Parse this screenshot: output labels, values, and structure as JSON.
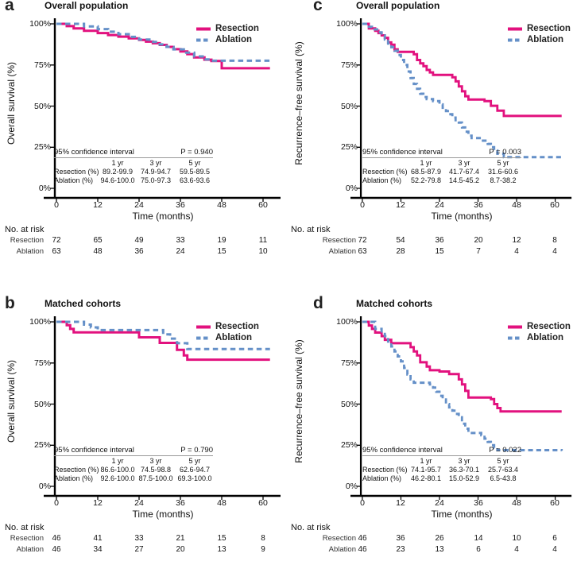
{
  "figure": {
    "colors": {
      "resection": "#E2117E",
      "ablation": "#6590C8",
      "axis": "#000000"
    }
  },
  "chart_data": [
    {
      "id": "a",
      "type": "line",
      "letter": "a",
      "title": "Overall population",
      "ylabel": "Overall survival (%)",
      "xlabel": "Time (months)",
      "xlim": [
        0,
        62
      ],
      "ylim": [
        0,
        100
      ],
      "x_ticks": [
        "0",
        "12",
        "24",
        "36",
        "48",
        "60"
      ],
      "y_ticks": [
        "100%",
        "75%",
        "50%",
        "25%",
        "0%"
      ],
      "ci_table": {
        "heading": "95% confidence interval",
        "p_value": "P = 0.940",
        "col_headers": [
          "1 yr",
          "3 yr",
          "5 yr"
        ],
        "rows": [
          {
            "label": "Resection (%)",
            "values": [
              "89.2-99.9",
              "74.9-94.7",
              "59.5-89.5"
            ]
          },
          {
            "label": "Ablation (%)",
            "values": [
              "94.6-100.0",
              "75.0-97.3",
              "63.6-93.6"
            ]
          }
        ]
      },
      "at_risk": {
        "heading": "No. at risk",
        "rows": [
          {
            "label": "Resection",
            "values": [
              "72",
              "65",
              "49",
              "33",
              "19",
              "11"
            ]
          },
          {
            "label": "Ablation",
            "values": [
              "63",
              "48",
              "36",
              "24",
              "15",
              "10"
            ]
          }
        ]
      },
      "series": [
        {
          "name": "Resection",
          "style": "solid",
          "points": [
            [
              0,
              100
            ],
            [
              3,
              98.6
            ],
            [
              5,
              97.2
            ],
            [
              8,
              95.8
            ],
            [
              12,
              94.4
            ],
            [
              15,
              93.2
            ],
            [
              18,
              92.2
            ],
            [
              21,
              91.2
            ],
            [
              24,
              90.2
            ],
            [
              26,
              89.2
            ],
            [
              28,
              88.2
            ],
            [
              30,
              87.2
            ],
            [
              32,
              86
            ],
            [
              34,
              84.6
            ],
            [
              36,
              83.2
            ],
            [
              38,
              81.6
            ],
            [
              40,
              79.6
            ],
            [
              43,
              78.2
            ],
            [
              45,
              77.4
            ],
            [
              48,
              73
            ],
            [
              62,
              73
            ]
          ]
        },
        {
          "name": "Ablation",
          "style": "dashed",
          "points": [
            [
              0,
              100
            ],
            [
              8,
              98.4
            ],
            [
              12,
              96.8
            ],
            [
              15,
              95.2
            ],
            [
              18,
              93.7
            ],
            [
              21,
              92.1
            ],
            [
              24,
              90.5
            ],
            [
              27,
              89
            ],
            [
              30,
              87.5
            ],
            [
              32,
              86
            ],
            [
              34,
              84.5
            ],
            [
              37,
              82.5
            ],
            [
              40,
              80.2
            ],
            [
              43,
              78.4
            ],
            [
              45,
              77.6
            ],
            [
              62,
              77.6
            ]
          ]
        }
      ]
    },
    {
      "id": "b",
      "type": "line",
      "letter": "b",
      "title": "Matched cohorts",
      "ylabel": "Overall survival (%)",
      "xlabel": "Time (months)",
      "xlim": [
        0,
        62
      ],
      "ylim": [
        0,
        100
      ],
      "x_ticks": [
        "0",
        "12",
        "24",
        "36",
        "48",
        "60"
      ],
      "y_ticks": [
        "100%",
        "75%",
        "50%",
        "25%",
        "0%"
      ],
      "ci_table": {
        "heading": "95% confidence interval",
        "p_value": "P = 0.790",
        "col_headers": [
          "1 yr",
          "3 yr",
          "5 yr"
        ],
        "rows": [
          {
            "label": "Resection (%)",
            "values": [
              "86.6-100.0",
              "74.5-98.8",
              "62.6-94.7"
            ]
          },
          {
            "label": "Ablation (%)",
            "values": [
              "92.6-100.0",
              "87.5-100.0",
              "69.3-100.0"
            ]
          }
        ]
      },
      "at_risk": {
        "heading": "No. at risk",
        "rows": [
          {
            "label": "Resection",
            "values": [
              "46",
              "41",
              "33",
              "21",
              "15",
              "8"
            ]
          },
          {
            "label": "Ablation",
            "values": [
              "46",
              "34",
              "27",
              "20",
              "13",
              "9"
            ]
          }
        ]
      },
      "series": [
        {
          "name": "Resection",
          "style": "solid",
          "points": [
            [
              0,
              100
            ],
            [
              3,
              97.9
            ],
            [
              4,
              95.7
            ],
            [
              5,
              93.6
            ],
            [
              24,
              90.6
            ],
            [
              30,
              87.2
            ],
            [
              35,
              83
            ],
            [
              37,
              79.6
            ],
            [
              38,
              77
            ],
            [
              62,
              77
            ]
          ]
        },
        {
          "name": "Ablation",
          "style": "dashed",
          "points": [
            [
              0,
              100
            ],
            [
              8,
              98.3
            ],
            [
              10,
              96.6
            ],
            [
              12,
              95
            ],
            [
              31,
              92.4
            ],
            [
              33,
              89.8
            ],
            [
              35,
              87
            ],
            [
              38,
              83.5
            ],
            [
              62,
              83.5
            ]
          ]
        }
      ]
    },
    {
      "id": "c",
      "type": "line",
      "letter": "c",
      "title": "Overall population",
      "ylabel": "Recurrence–free survival (%)",
      "xlabel": "Time (months)",
      "xlim": [
        0,
        62
      ],
      "ylim": [
        0,
        100
      ],
      "x_ticks": [
        "0",
        "12",
        "24",
        "36",
        "48",
        "60"
      ],
      "y_ticks": [
        "100%",
        "75%",
        "50%",
        "25%",
        "0%"
      ],
      "ci_table": {
        "heading": "95% confidence interval",
        "p_value": "P = 0.003",
        "col_headers": [
          "1 yr",
          "3 yr",
          "5 yr"
        ],
        "rows": [
          {
            "label": "Resection (%)",
            "values": [
              "68.5-87.9",
              "41.7-67.4",
              "31.6-60.6"
            ]
          },
          {
            "label": "Ablation (%)",
            "values": [
              "52.2-79.8",
              "14.5-45.2",
              "8.7-38.2"
            ]
          }
        ]
      },
      "at_risk": {
        "heading": "No. at risk",
        "rows": [
          {
            "label": "Resection",
            "values": [
              "72",
              "54",
              "36",
              "20",
              "12",
              "8"
            ]
          },
          {
            "label": "Ablation",
            "values": [
              "63",
              "28",
              "15",
              "7",
              "4",
              "4"
            ]
          }
        ]
      },
      "series": [
        {
          "name": "Resection",
          "style": "solid",
          "points": [
            [
              0,
              100
            ],
            [
              2,
              97.2
            ],
            [
              4,
              95.8
            ],
            [
              5,
              94.4
            ],
            [
              6,
              93
            ],
            [
              7,
              91.5
            ],
            [
              8,
              88.7
            ],
            [
              9,
              87.3
            ],
            [
              10,
              84.5
            ],
            [
              11,
              83
            ],
            [
              16,
              81.5
            ],
            [
              17,
              78
            ],
            [
              18,
              76
            ],
            [
              19,
              74.3
            ],
            [
              20,
              72
            ],
            [
              21,
              70.5
            ],
            [
              22,
              69
            ],
            [
              28,
              67.5
            ],
            [
              29,
              65
            ],
            [
              30,
              62
            ],
            [
              31,
              59
            ],
            [
              32,
              56
            ],
            [
              33,
              54
            ],
            [
              38,
              53
            ],
            [
              40,
              50.2
            ],
            [
              42,
              47.2
            ],
            [
              44,
              44
            ],
            [
              62,
              44
            ]
          ]
        },
        {
          "name": "Ablation",
          "style": "dashed",
          "points": [
            [
              0,
              100
            ],
            [
              2,
              98.2
            ],
            [
              3,
              96.6
            ],
            [
              5,
              94.8
            ],
            [
              6,
              93
            ],
            [
              7,
              90.5
            ],
            [
              8,
              88
            ],
            [
              9,
              85.8
            ],
            [
              10,
              83.6
            ],
            [
              11,
              81
            ],
            [
              12,
              78
            ],
            [
              13,
              75
            ],
            [
              14,
              71
            ],
            [
              15,
              67
            ],
            [
              16,
              63.5
            ],
            [
              17,
              60.5
            ],
            [
              18,
              57.5
            ],
            [
              19,
              55.5
            ],
            [
              20,
              54.2
            ],
            [
              22,
              53
            ],
            [
              24,
              51
            ],
            [
              25,
              49
            ],
            [
              26,
              47
            ],
            [
              27,
              45
            ],
            [
              28,
              43
            ],
            [
              29,
              41.4
            ],
            [
              30,
              40
            ],
            [
              31,
              37
            ],
            [
              32,
              34.4
            ],
            [
              33,
              32
            ],
            [
              34,
              30.6
            ],
            [
              37,
              29
            ],
            [
              39,
              27
            ],
            [
              40,
              25
            ],
            [
              41,
              23
            ],
            [
              42,
              21
            ],
            [
              44,
              19
            ],
            [
              62,
              19
            ]
          ]
        }
      ]
    },
    {
      "id": "d",
      "type": "line",
      "letter": "d",
      "title": "Matched cohorts",
      "ylabel": "Recurrence–free survival (%)",
      "xlabel": "Time (months)",
      "xlim": [
        0,
        62
      ],
      "ylim": [
        0,
        100
      ],
      "x_ticks": [
        "0",
        "12",
        "24",
        "36",
        "48",
        "60"
      ],
      "y_ticks": [
        "100%",
        "75%",
        "50%",
        "25%",
        "0%"
      ],
      "ci_table": {
        "heading": "95% confidence interval",
        "p_value": "P = 0.022",
        "col_headers": [
          "1 yr",
          "3 yr",
          "5 yr"
        ],
        "rows": [
          {
            "label": "Resection (%)",
            "values": [
              "74.1-95.7",
              "36.3-70.1",
              "25.7-63.4"
            ]
          },
          {
            "label": "Ablation (%)",
            "values": [
              "46.2-80.1",
              "15.0-52.9",
              "6.5-43.8"
            ]
          }
        ]
      },
      "at_risk": {
        "heading": "No. at risk",
        "rows": [
          {
            "label": "Resection",
            "values": [
              "46",
              "36",
              "26",
              "14",
              "10",
              "6"
            ]
          },
          {
            "label": "Ablation",
            "values": [
              "46",
              "23",
              "13",
              "6",
              "4",
              "4"
            ]
          }
        ]
      },
      "series": [
        {
          "name": "Resection",
          "style": "solid",
          "points": [
            [
              0,
              100
            ],
            [
              2,
              97.8
            ],
            [
              3,
              95.7
            ],
            [
              4,
              93.5
            ],
            [
              6,
              91.3
            ],
            [
              7,
              89.1
            ],
            [
              9,
              87
            ],
            [
              15,
              84.6
            ],
            [
              16,
              82
            ],
            [
              17,
              79.6
            ],
            [
              18,
              75.4
            ],
            [
              20,
              72.8
            ],
            [
              21,
              70.6
            ],
            [
              24,
              69.8
            ],
            [
              27,
              68.2
            ],
            [
              30,
              65
            ],
            [
              31,
              62
            ],
            [
              32,
              58
            ],
            [
              33,
              54
            ],
            [
              40,
              53
            ],
            [
              41,
              50
            ],
            [
              42,
              47.6
            ],
            [
              43,
              45.5
            ],
            [
              62,
              45.5
            ]
          ]
        },
        {
          "name": "Ablation",
          "style": "dashed",
          "points": [
            [
              0,
              100
            ],
            [
              4,
              95.7
            ],
            [
              6,
              93.5
            ],
            [
              7,
              91.3
            ],
            [
              8,
              88
            ],
            [
              9,
              85
            ],
            [
              10,
              82
            ],
            [
              11,
              79
            ],
            [
              12,
              76
            ],
            [
              13,
              72
            ],
            [
              14,
              68
            ],
            [
              15,
              65
            ],
            [
              16,
              63
            ],
            [
              21,
              62
            ],
            [
              22,
              60
            ],
            [
              23,
              57.5
            ],
            [
              24,
              55
            ],
            [
              25,
              52.8
            ],
            [
              26,
              50
            ],
            [
              27,
              48
            ],
            [
              28,
              46
            ],
            [
              29,
              44
            ],
            [
              30,
              42
            ],
            [
              31,
              38
            ],
            [
              32,
              35
            ],
            [
              33,
              32.4
            ],
            [
              37,
              31
            ],
            [
              38,
              29
            ],
            [
              39,
              27
            ],
            [
              40,
              25
            ],
            [
              41,
              23.4
            ],
            [
              42,
              22
            ],
            [
              62,
              21.6
            ]
          ]
        }
      ]
    }
  ]
}
